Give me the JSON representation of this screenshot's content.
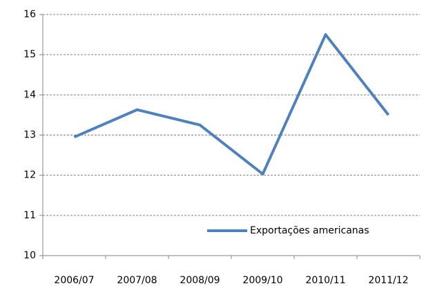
{
  "chart_data": {
    "type": "line",
    "categories": [
      "2006/07",
      "2007/08",
      "2008/09",
      "2009/10",
      "2010/11",
      "2011/12"
    ],
    "series": [
      {
        "name": "Exportações americanas",
        "color": "#4f81bd",
        "values": [
          12.95,
          13.63,
          13.25,
          12.03,
          15.5,
          13.5
        ]
      }
    ],
    "ylim": [
      10,
      16
    ],
    "yticks": [
      10,
      11,
      12,
      13,
      14,
      15,
      16
    ],
    "grid": true,
    "legend": "lower right"
  }
}
